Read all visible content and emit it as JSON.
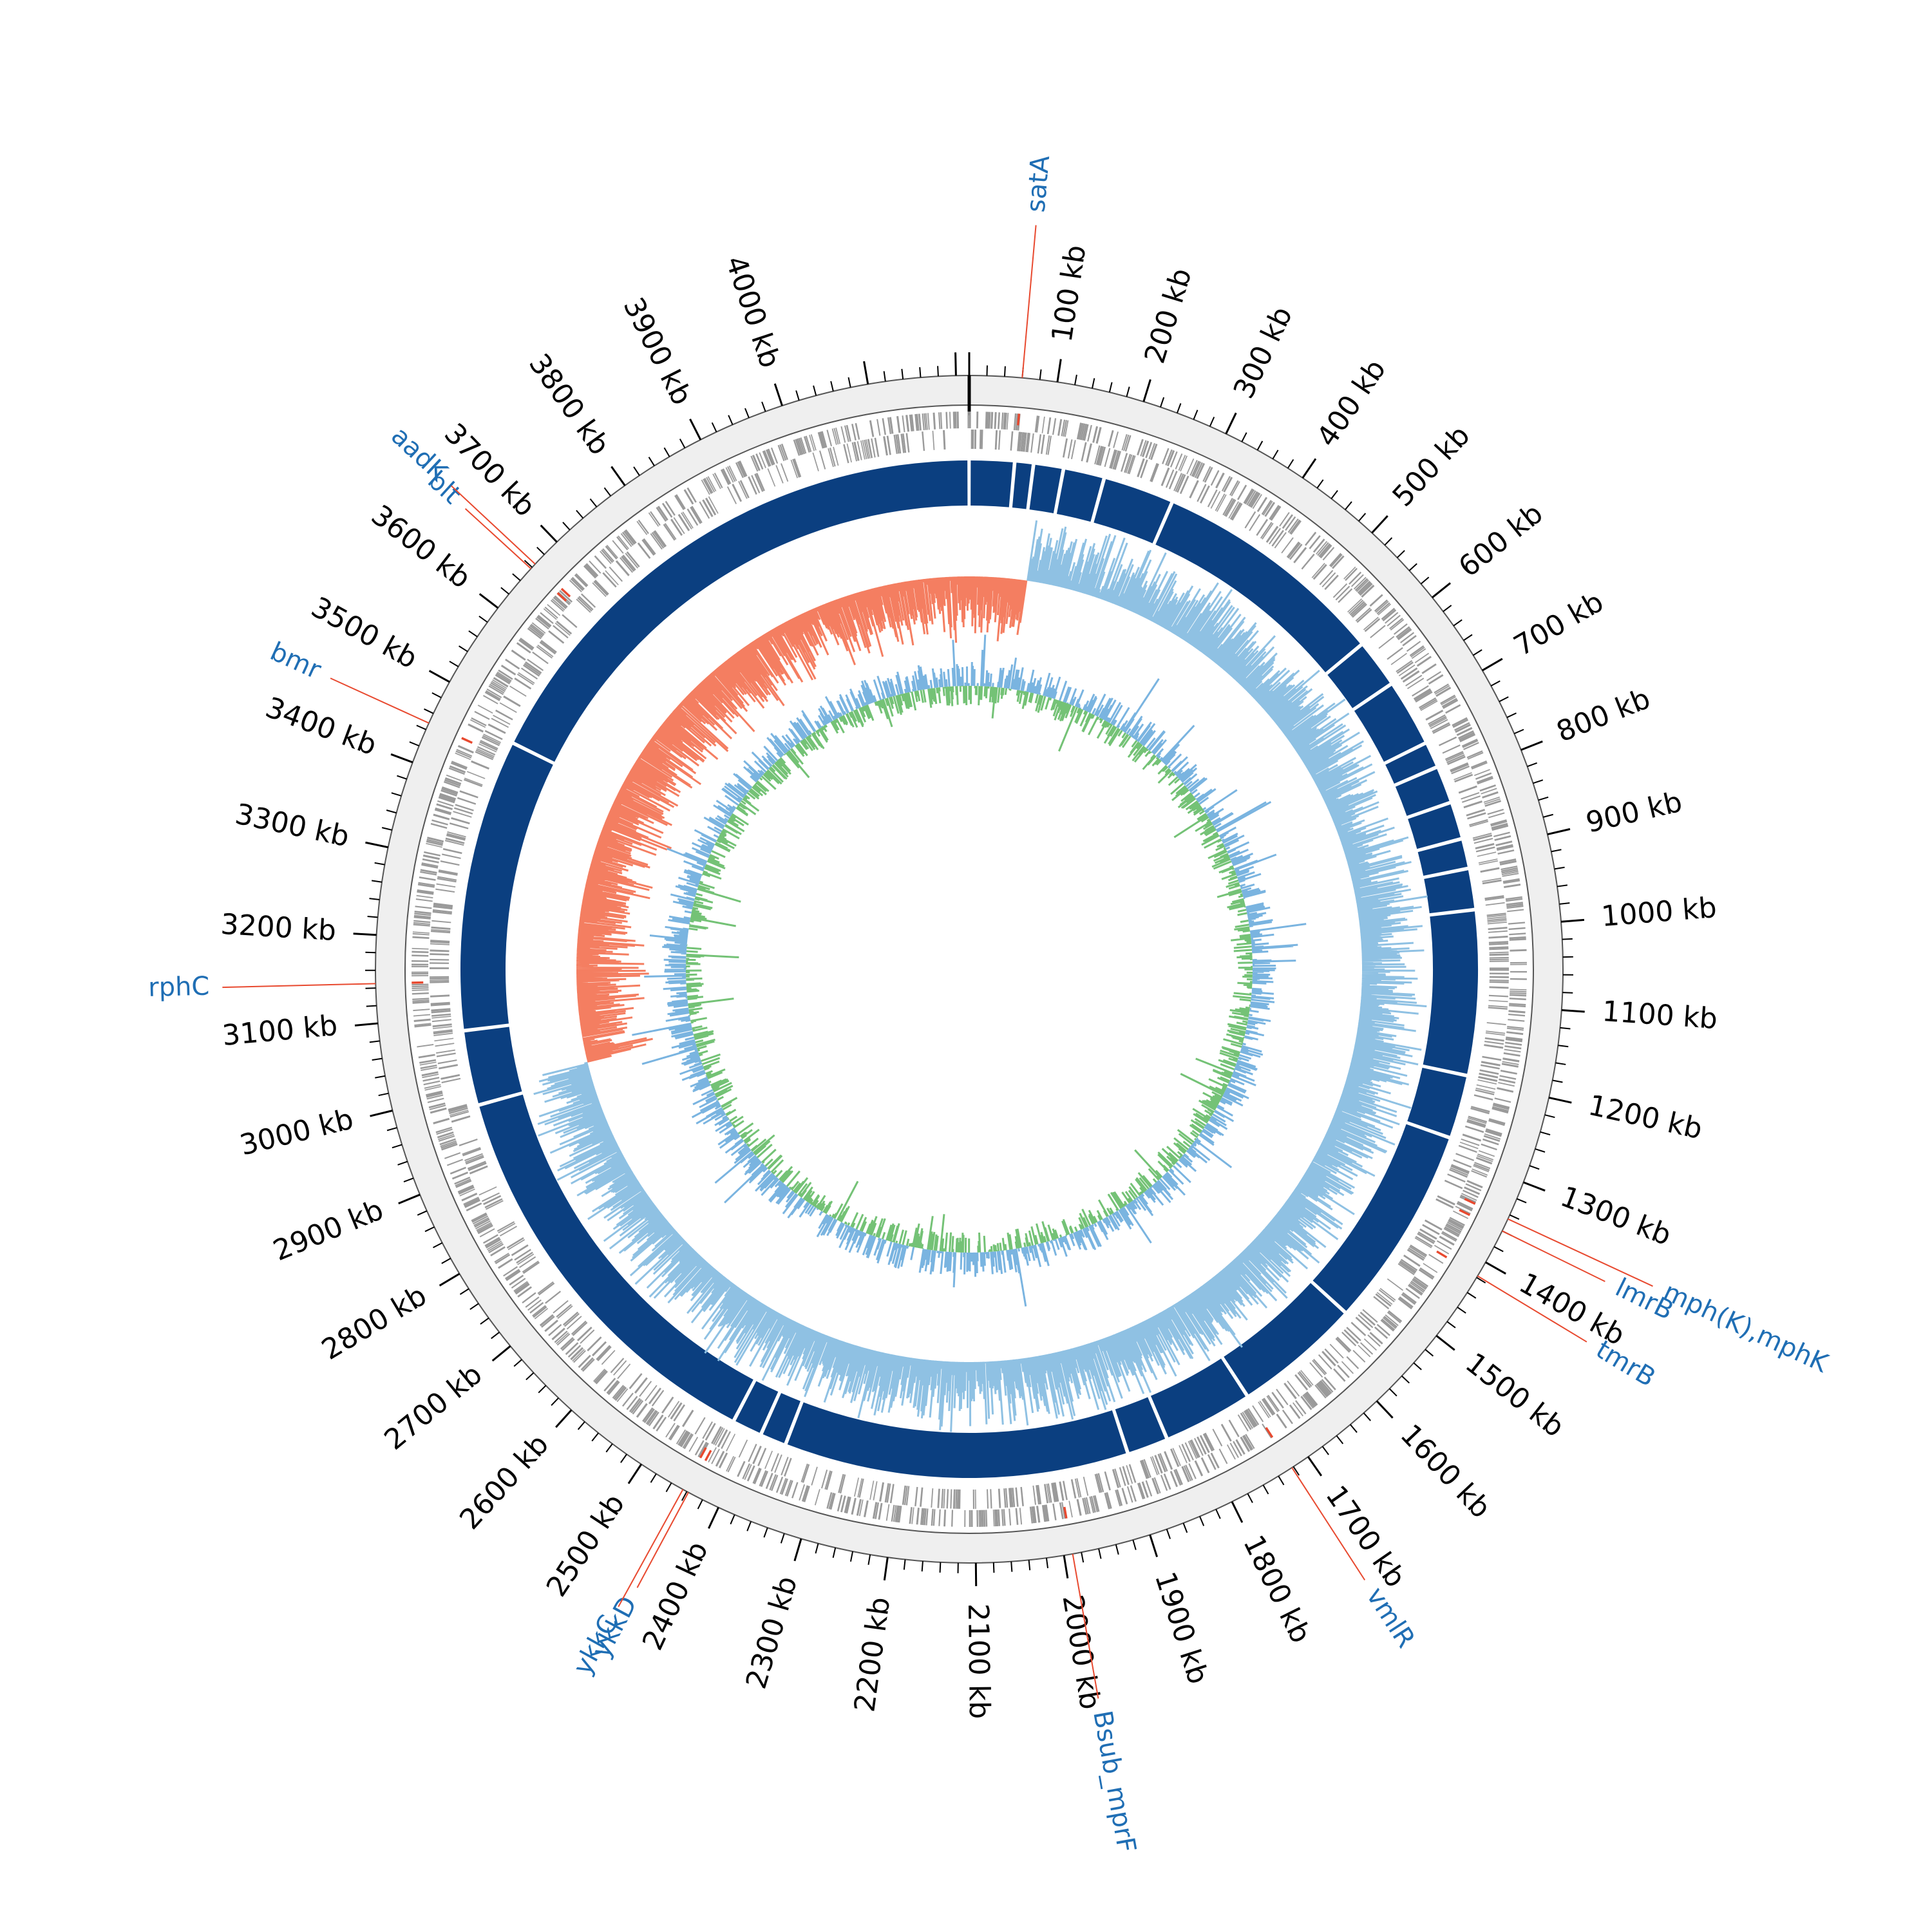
{
  "chart_data": {
    "type": "circular-genome-map",
    "genome_length_kb": 4215,
    "tick_unit": "kb",
    "tick_labels": [
      "100 kb",
      "200 kb",
      "300 kb",
      "400 kb",
      "500 kb",
      "600 kb",
      "700 kb",
      "800 kb",
      "900 kb",
      "1000 kb",
      "1100 kb",
      "1200 kb",
      "1300 kb",
      "1400 kb",
      "1500 kb",
      "1600 kb",
      "1700 kb",
      "1800 kb",
      "1900 kb",
      "2000 kb",
      "2100 kb",
      "2200 kb",
      "2300 kb",
      "2400 kb",
      "2500 kb",
      "2600 kb",
      "2700 kb",
      "2800 kb",
      "2900 kb",
      "3000 kb",
      "3100 kb",
      "3200 kb",
      "3300 kb",
      "3400 kb",
      "3500 kb",
      "3600 kb",
      "3700 kb",
      "3800 kb",
      "3900 kb",
      "4000 kb"
    ],
    "tick_values_kb": [
      100,
      200,
      300,
      400,
      500,
      600,
      700,
      800,
      900,
      1000,
      1100,
      1200,
      1300,
      1400,
      1500,
      1600,
      1700,
      1800,
      1900,
      2000,
      2100,
      2200,
      2300,
      2400,
      2500,
      2600,
      2700,
      2800,
      2900,
      3000,
      3100,
      3200,
      3300,
      3400,
      3500,
      3600,
      3700,
      3800,
      3900,
      4000
    ],
    "genes": [
      {
        "name": "satA",
        "position_kb": 60
      },
      {
        "name": "mph(K),mphK",
        "position_kb": 1345
      },
      {
        "name": "lmrB",
        "position_kb": 1360
      },
      {
        "name": "tmrB",
        "position_kb": 1418
      },
      {
        "name": "vmlR",
        "position_kb": 1722
      },
      {
        "name": "Bsub_mprF",
        "position_kb": 1990
      },
      {
        "name": "ykkD",
        "position_kb": 2438
      },
      {
        "name": "ykkC",
        "position_kb": 2445
      },
      {
        "name": "rphC",
        "position_kb": 3145
      },
      {
        "name": "bmr",
        "position_kb": 3448
      },
      {
        "name": "blt",
        "position_kb": 3658
      },
      {
        "name": "aadK",
        "position_kb": 3665
      }
    ],
    "contig_breaks_kb": [
      60,
      85,
      125,
      180,
      275,
      590,
      655,
      745,
      780,
      830,
      880,
      920,
      975,
      1195,
      1280,
      1550,
      1720,
      1840,
      1895,
      2355,
      2390,
      2430,
      2980,
      3080,
      3470
    ],
    "colors": {
      "outer_ring": "#efefef",
      "genes_track": "#9a9a9a",
      "contigs": "#0b3f80",
      "gc_skew_negative": "#f47e61",
      "gc_skew_positive": "#8fc1e3",
      "gc_content_high": "#74c276",
      "gc_content_low": "#7ab4e0",
      "label_text": "#1f6eb4",
      "label_line": "#e8492f"
    }
  }
}
